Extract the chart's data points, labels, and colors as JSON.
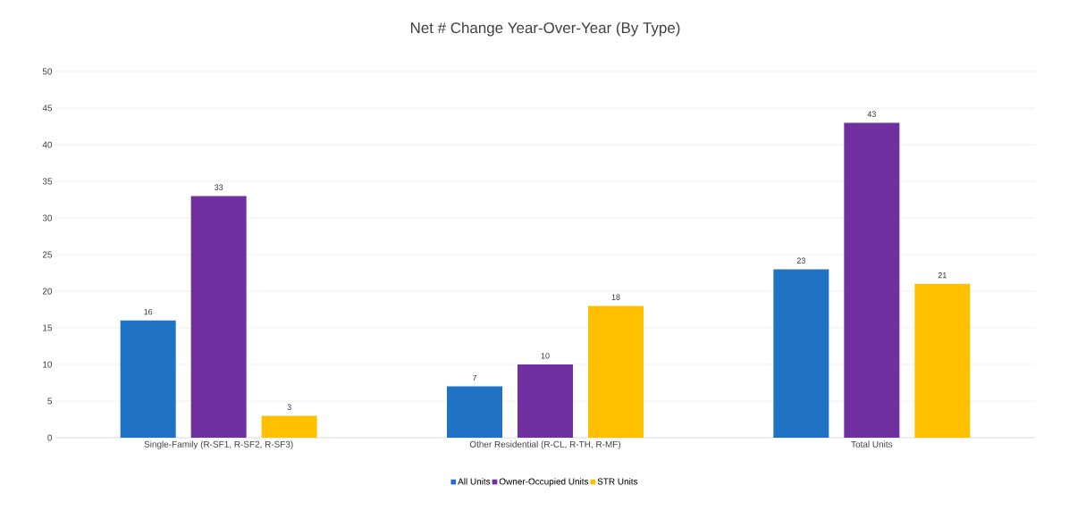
{
  "chart_data": {
    "type": "bar",
    "title": "Net # Change Year-Over-Year (By Type)",
    "categories": [
      "Single-Family (R-SF1, R-SF2, R-SF3)",
      "Other Residential (R-CL, R-TH, R-MF)",
      "Total Units"
    ],
    "series": [
      {
        "name": "All Units",
        "color": "#1f72c4",
        "values": [
          16,
          7,
          23
        ]
      },
      {
        "name": "Owner-Occupied Units",
        "color": "#7030a0",
        "values": [
          33,
          10,
          43
        ]
      },
      {
        "name": "STR Units",
        "color": "#ffc000",
        "values": [
          3,
          18,
          21
        ]
      }
    ],
    "ylim": [
      0,
      50
    ],
    "yticks": [
      0,
      5,
      10,
      15,
      20,
      25,
      30,
      35,
      40,
      45,
      50
    ],
    "grid": "y",
    "legend": "bottom",
    "data_labels": true
  }
}
